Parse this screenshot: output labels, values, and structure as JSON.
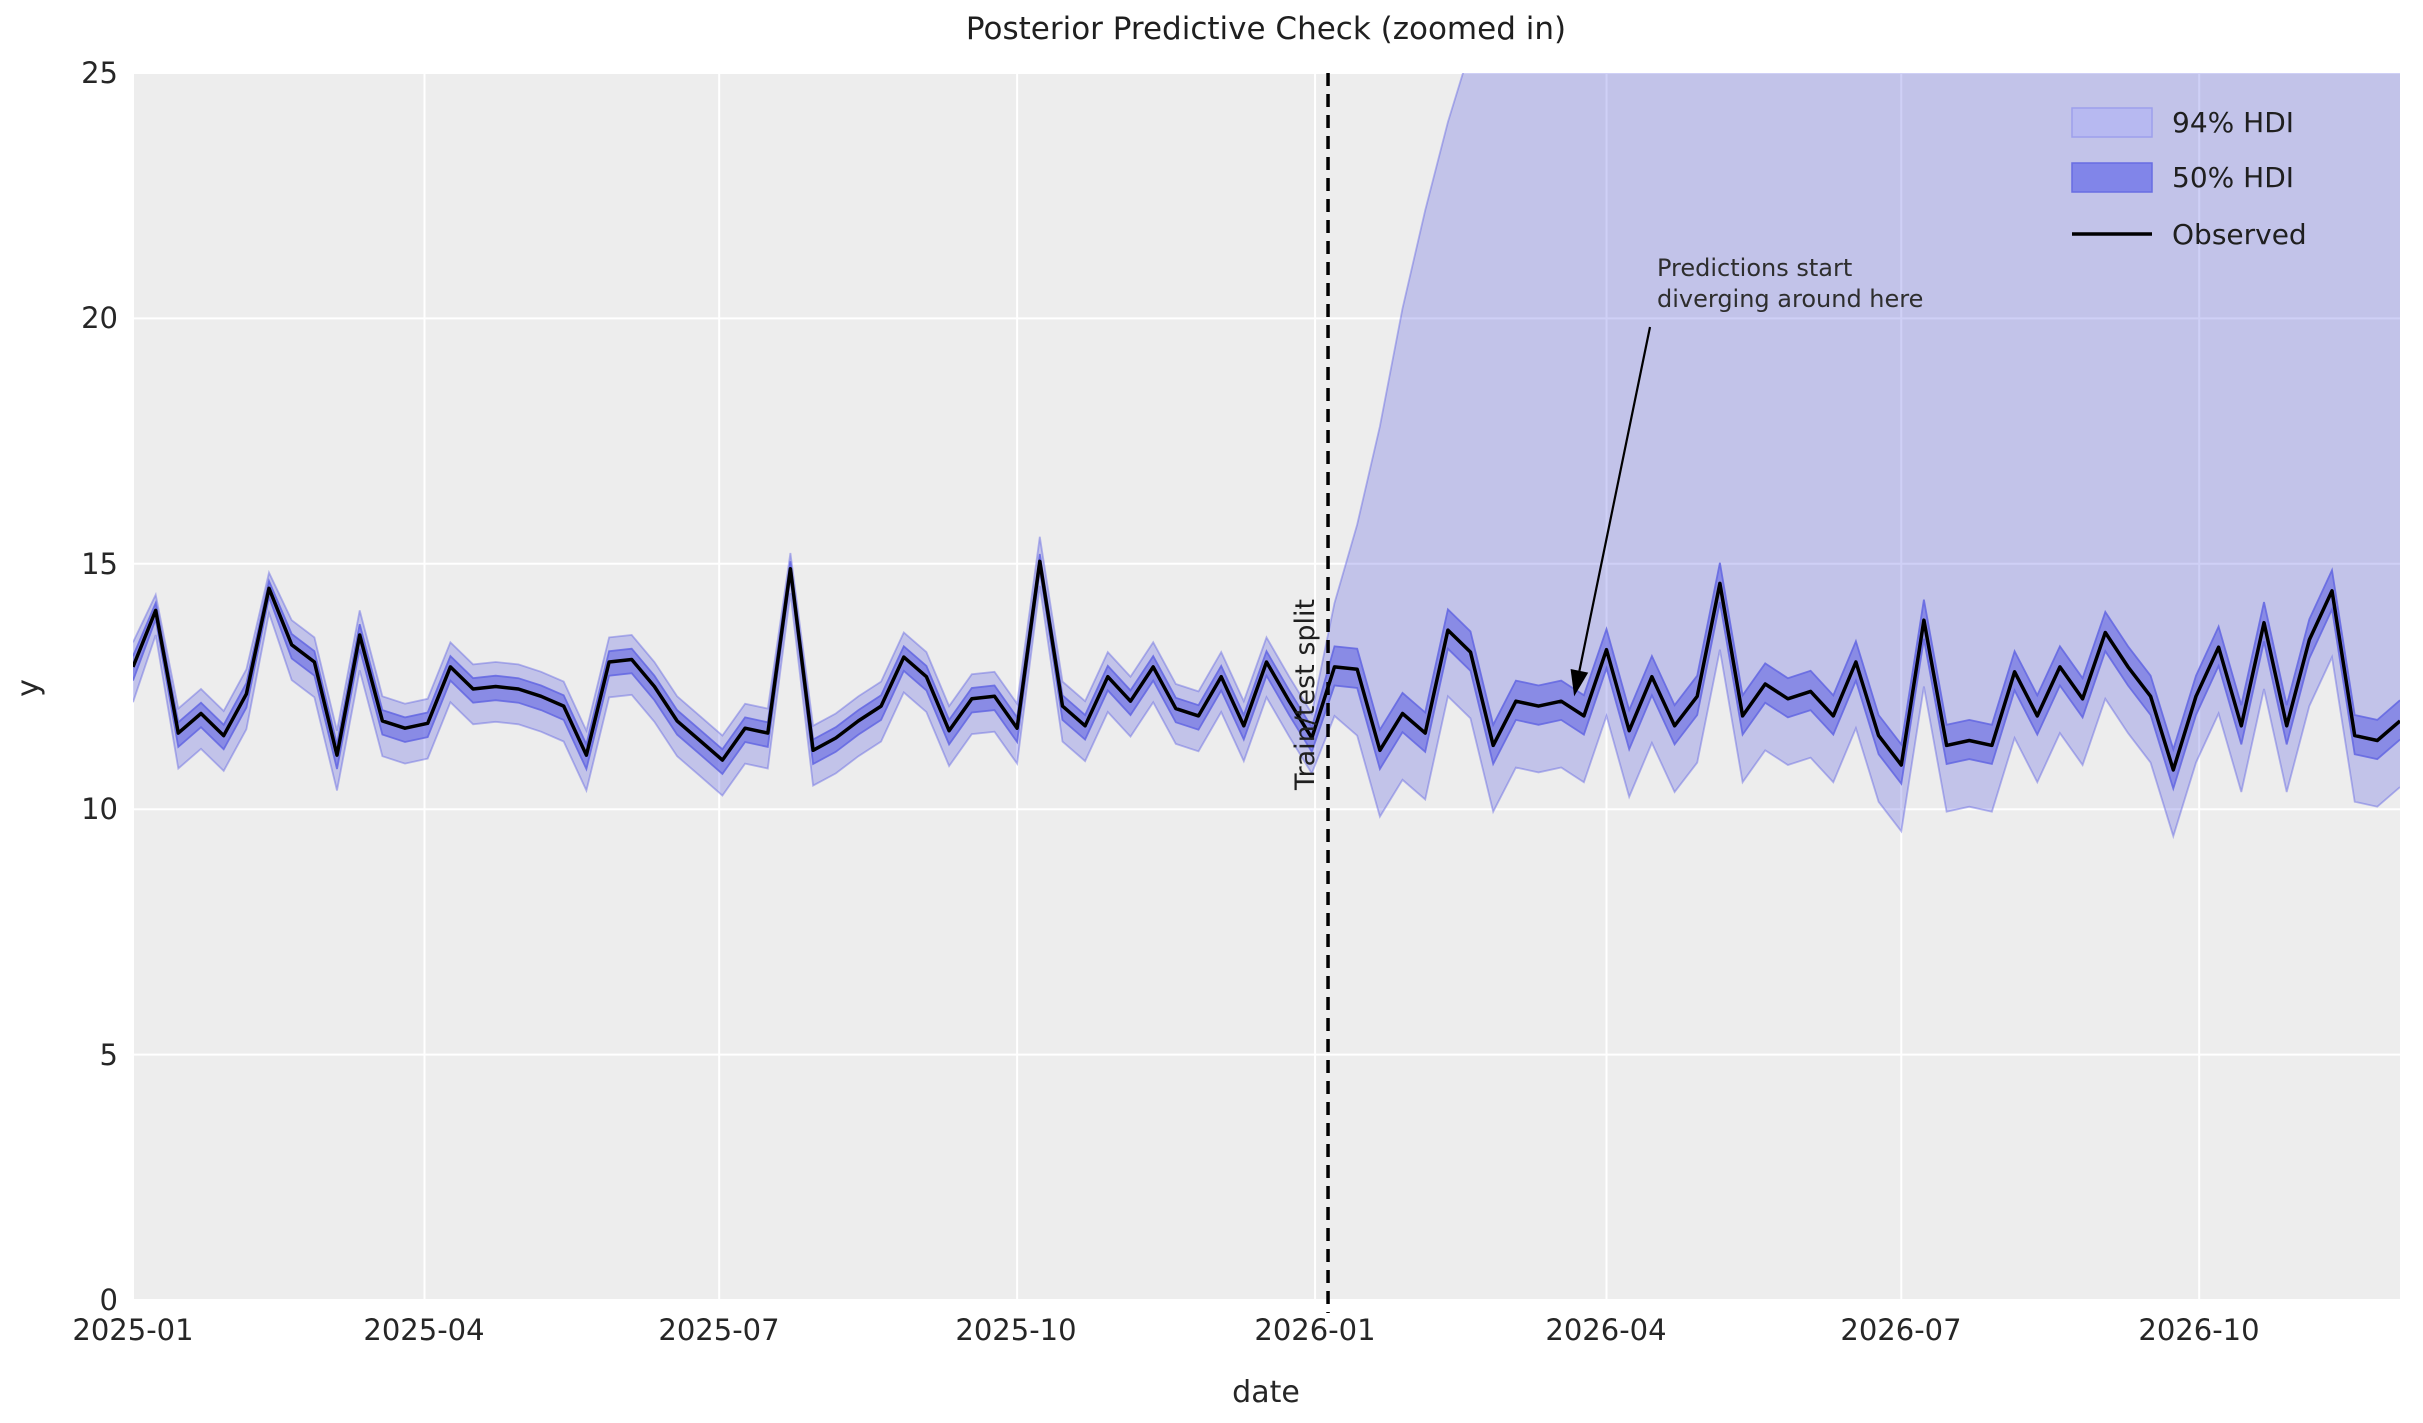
{
  "title": "Posterior Predictive Check (zoomed in)",
  "colors": {
    "plot_bg": "#ededed",
    "grid": "#ffffff",
    "band_base": "#6366e2",
    "hdi94_fill": "rgba(99,102,226,0.31)",
    "hdi94_edge": "rgba(99,102,226,0.45)",
    "hdi50_fill": "rgba(99,102,226,0.60)",
    "hdi50_edge": "rgba(99,102,226,0.85)",
    "observed": "#000000",
    "split_line": "#000000",
    "legend_94_fill": "#b7b9f1",
    "legend_94_edge": "#9da0ec",
    "legend_50_fill": "#8185e9",
    "legend_50_edge": "#686de2"
  },
  "chart_data": {
    "type": "line",
    "title": "Posterior Predictive Check (zoomed in)",
    "xlabel": "date",
    "ylabel": "y",
    "ylim": [
      0,
      25
    ],
    "x_domain": [
      "2025-01-01",
      "2026-12-02"
    ],
    "grid": "on",
    "legend_position": "upper right",
    "y_ticks": [
      "0",
      "5",
      "10",
      "15",
      "20",
      "25"
    ],
    "x_ticks": [
      {
        "label": "2025-01",
        "date": "2025-01-01"
      },
      {
        "label": "2025-04",
        "date": "2025-04-01"
      },
      {
        "label": "2025-07",
        "date": "2025-07-01"
      },
      {
        "label": "2025-10",
        "date": "2025-10-01"
      },
      {
        "label": "2026-01",
        "date": "2026-01-01"
      },
      {
        "label": "2026-04",
        "date": "2026-04-01"
      },
      {
        "label": "2026-07",
        "date": "2026-07-01"
      },
      {
        "label": "2026-10",
        "date": "2026-10-01"
      }
    ],
    "legend": [
      {
        "label": "94% HDI",
        "swatch": "hdi94"
      },
      {
        "label": "50% HDI",
        "swatch": "hdi50"
      },
      {
        "label": "Observed",
        "swatch": "line"
      }
    ],
    "split_line": {
      "date": "2026-01-05",
      "label": "Train/test split",
      "style": "dashed"
    },
    "annotation": {
      "text_line1": "Predictions start",
      "text_line2": "diverging around here",
      "arrow_tip_date": "2026-03-22",
      "arrow_tip_y": 12.3
    },
    "series": {
      "dates": [
        "2025-01-01",
        "2025-01-08",
        "2025-01-15",
        "2025-01-22",
        "2025-01-29",
        "2025-02-05",
        "2025-02-12",
        "2025-02-19",
        "2025-02-26",
        "2025-03-05",
        "2025-03-12",
        "2025-03-19",
        "2025-03-26",
        "2025-04-02",
        "2025-04-09",
        "2025-04-16",
        "2025-04-23",
        "2025-04-30",
        "2025-05-07",
        "2025-05-14",
        "2025-05-21",
        "2025-05-28",
        "2025-06-04",
        "2025-06-11",
        "2025-06-18",
        "2025-06-25",
        "2025-07-02",
        "2025-07-09",
        "2025-07-16",
        "2025-07-23",
        "2025-07-30",
        "2025-08-06",
        "2025-08-13",
        "2025-08-20",
        "2025-08-27",
        "2025-09-03",
        "2025-09-10",
        "2025-09-17",
        "2025-09-24",
        "2025-10-01",
        "2025-10-08",
        "2025-10-15",
        "2025-10-22",
        "2025-10-29",
        "2025-11-05",
        "2025-11-12",
        "2025-11-19",
        "2025-11-26",
        "2025-12-03",
        "2025-12-10",
        "2025-12-17",
        "2025-12-24",
        "2025-12-31",
        "2026-01-07",
        "2026-01-14",
        "2026-01-21",
        "2026-01-28",
        "2026-02-04",
        "2026-02-11",
        "2026-02-18",
        "2026-02-25",
        "2026-03-04",
        "2026-03-11",
        "2026-03-18",
        "2026-03-25",
        "2026-04-01",
        "2026-04-08",
        "2026-04-15",
        "2026-04-22",
        "2026-04-29",
        "2026-05-06",
        "2026-05-13",
        "2026-05-20",
        "2026-05-27",
        "2026-06-03",
        "2026-06-10",
        "2026-06-17",
        "2026-06-24",
        "2026-07-01",
        "2026-07-08",
        "2026-07-15",
        "2026-07-22",
        "2026-07-29",
        "2026-08-05",
        "2026-08-12",
        "2026-08-19",
        "2026-08-26",
        "2026-09-02",
        "2026-09-09",
        "2026-09-16",
        "2026-09-23",
        "2026-09-30",
        "2026-10-07",
        "2026-10-14",
        "2026-10-21",
        "2026-10-28",
        "2026-11-04",
        "2026-11-11",
        "2026-11-18",
        "2026-11-25",
        "2026-12-02"
      ],
      "observed": [
        12.9,
        14.05,
        11.55,
        11.95,
        11.5,
        12.35,
        14.5,
        13.35,
        13.0,
        11.1,
        13.55,
        11.8,
        11.65,
        11.75,
        12.9,
        12.45,
        12.5,
        12.45,
        12.3,
        12.1,
        11.1,
        13.0,
        13.05,
        12.5,
        11.8,
        11.4,
        11.0,
        11.65,
        11.55,
        14.9,
        11.2,
        11.45,
        11.8,
        12.1,
        13.1,
        12.7,
        11.6,
        12.25,
        12.3,
        11.65,
        15.05,
        12.1,
        11.7,
        12.7,
        12.2,
        12.9,
        12.05,
        11.9,
        12.7,
        11.7,
        13.0,
        12.2,
        11.45,
        12.9,
        12.85,
        11.2,
        11.95,
        11.55,
        13.65,
        13.2,
        11.3,
        12.2,
        12.1,
        12.2,
        11.9,
        13.25,
        11.6,
        12.7,
        11.7,
        12.3,
        14.6,
        11.9,
        12.55,
        12.25,
        12.4,
        11.9,
        13.0,
        11.5,
        10.9,
        13.85,
        11.3,
        11.4,
        11.3,
        12.8,
        11.9,
        12.9,
        12.25,
        13.6,
        12.9,
        12.3,
        10.8,
        12.3,
        13.3,
        11.7,
        13.8,
        11.7,
        13.45,
        14.45,
        11.5,
        11.4,
        11.8
      ],
      "hdi94_lower": [
        12.18,
        13.55,
        10.83,
        11.23,
        10.78,
        11.63,
        14.0,
        12.63,
        12.28,
        10.38,
        12.83,
        11.08,
        10.93,
        11.03,
        12.18,
        11.73,
        11.78,
        11.73,
        11.58,
        11.38,
        10.38,
        12.28,
        12.33,
        11.78,
        11.08,
        10.68,
        10.28,
        10.93,
        10.83,
        14.4,
        10.48,
        10.73,
        11.08,
        11.38,
        12.38,
        11.98,
        10.88,
        11.53,
        11.58,
        10.93,
        14.55,
        11.38,
        10.98,
        11.98,
        11.48,
        12.18,
        11.33,
        11.18,
        11.98,
        10.98,
        12.28,
        11.48,
        10.73,
        11.9,
        11.5,
        9.85,
        10.6,
        10.2,
        12.3,
        11.85,
        9.95,
        10.85,
        10.75,
        10.85,
        10.55,
        11.9,
        10.25,
        11.35,
        10.35,
        10.95,
        13.25,
        10.55,
        11.2,
        10.9,
        11.05,
        10.55,
        11.65,
        10.15,
        9.55,
        12.5,
        9.95,
        10.05,
        9.95,
        11.45,
        10.55,
        11.55,
        10.9,
        12.25,
        11.55,
        10.95,
        9.45,
        10.95,
        11.95,
        10.35,
        12.45,
        10.35,
        12.1,
        13.1,
        10.15,
        10.05,
        10.45
      ],
      "hdi94_upper": [
        13.4,
        14.37,
        12.05,
        12.45,
        12.0,
        12.85,
        14.82,
        13.85,
        13.5,
        11.6,
        14.05,
        12.3,
        12.15,
        12.25,
        13.4,
        12.95,
        13.0,
        12.95,
        12.8,
        12.6,
        11.6,
        13.5,
        13.55,
        13.0,
        12.3,
        11.9,
        11.5,
        12.15,
        12.05,
        15.22,
        11.7,
        11.95,
        12.3,
        12.6,
        13.6,
        13.2,
        12.1,
        12.75,
        12.8,
        12.15,
        15.55,
        12.6,
        12.2,
        13.2,
        12.7,
        13.4,
        12.55,
        12.4,
        13.2,
        12.2,
        13.5,
        12.7,
        11.95,
        14.2,
        15.8,
        17.8,
        20.2,
        22.2,
        24.0,
        25.5,
        27.0,
        28.5,
        30.0,
        31.5,
        33.0,
        34.5,
        36.0,
        37.5,
        39.0,
        40,
        40,
        40,
        40,
        40,
        40,
        40,
        40,
        40,
        40,
        40,
        40,
        40,
        40,
        40,
        40,
        40,
        40,
        40,
        40,
        40,
        40,
        40,
        40,
        40,
        40,
        40,
        40,
        40,
        40,
        40,
        40
      ],
      "hdi50_lower": [
        12.62,
        13.87,
        11.27,
        11.67,
        11.22,
        12.07,
        14.32,
        13.07,
        12.72,
        10.82,
        13.27,
        11.52,
        11.37,
        11.47,
        12.62,
        12.17,
        12.22,
        12.17,
        12.02,
        11.82,
        10.82,
        12.72,
        12.77,
        12.22,
        11.52,
        11.12,
        10.72,
        11.37,
        11.27,
        14.72,
        10.92,
        11.17,
        11.52,
        11.82,
        12.82,
        12.42,
        11.32,
        11.97,
        12.02,
        11.37,
        14.87,
        11.82,
        11.42,
        12.42,
        11.92,
        12.62,
        11.77,
        11.62,
        12.42,
        11.42,
        12.72,
        11.92,
        11.17,
        12.52,
        12.47,
        10.82,
        11.57,
        11.17,
        13.27,
        12.82,
        10.92,
        11.82,
        11.72,
        11.82,
        11.52,
        12.87,
        11.22,
        12.32,
        11.32,
        11.92,
        14.22,
        11.52,
        12.17,
        11.87,
        12.02,
        11.52,
        12.62,
        11.12,
        10.52,
        13.47,
        10.92,
        11.02,
        10.92,
        12.42,
        11.52,
        12.52,
        11.87,
        13.22,
        12.52,
        11.92,
        10.42,
        11.92,
        12.92,
        11.32,
        13.42,
        11.32,
        13.07,
        14.07,
        11.12,
        11.02,
        11.42
      ],
      "hdi50_upper": [
        13.12,
        14.2,
        11.77,
        12.17,
        11.72,
        12.57,
        14.65,
        13.57,
        13.22,
        11.32,
        13.77,
        12.02,
        11.87,
        11.97,
        13.12,
        12.67,
        12.72,
        12.67,
        12.52,
        12.32,
        11.32,
        13.22,
        13.27,
        12.72,
        12.02,
        11.62,
        11.22,
        11.87,
        11.77,
        15.05,
        11.42,
        11.67,
        12.02,
        12.32,
        13.32,
        12.92,
        11.82,
        12.47,
        12.52,
        11.87,
        15.2,
        12.32,
        11.92,
        12.92,
        12.42,
        13.12,
        12.27,
        12.12,
        12.92,
        11.92,
        13.22,
        12.42,
        11.67,
        13.32,
        13.27,
        11.62,
        12.37,
        11.97,
        14.07,
        13.62,
        11.72,
        12.62,
        12.52,
        12.62,
        12.32,
        13.67,
        12.02,
        13.12,
        12.12,
        12.72,
        15.02,
        12.32,
        12.97,
        12.67,
        12.82,
        12.32,
        13.42,
        11.92,
        11.32,
        14.27,
        11.72,
        11.82,
        11.72,
        13.22,
        12.32,
        13.32,
        12.67,
        14.02,
        13.32,
        12.72,
        11.22,
        12.72,
        13.72,
        12.12,
        14.22,
        12.12,
        13.87,
        14.87,
        11.92,
        11.82,
        12.22
      ]
    }
  }
}
